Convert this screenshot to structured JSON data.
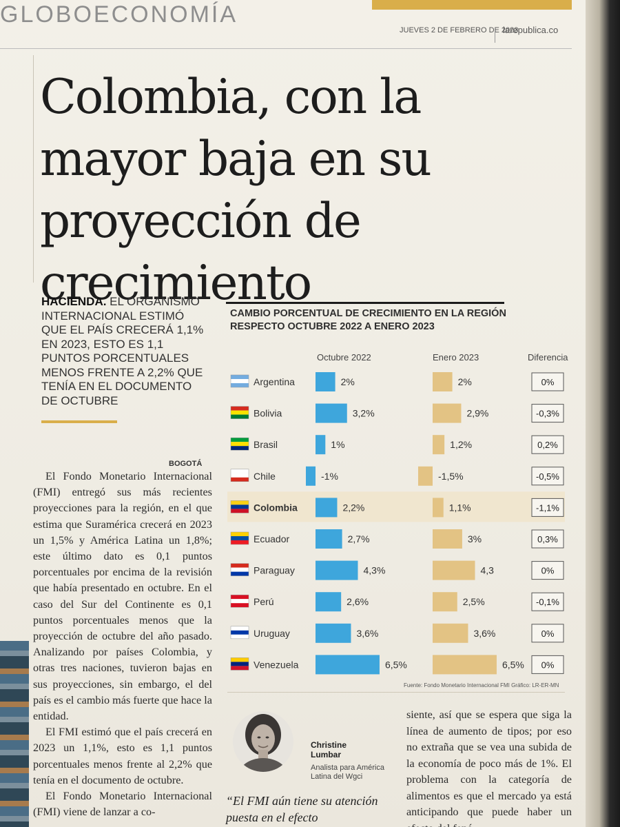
{
  "header": {
    "section": "GLOBOECONOMÍA",
    "date": "JUEVES 2 DE FEBRERO DE 2023",
    "site": "larepublica.co"
  },
  "headline": "Colombia, con la mayor baja en su proyección de crecimiento",
  "lead": {
    "kicker": "HACIENDA.",
    "text": " EL ORGANISMO INTERNACIONAL ESTIMÓ QUE EL PAÍS CRECERÁ 1,1% EN 2023, ESTO ES 1,1 PUNTOS PORCENTUALES MENOS FRENTE A 2,2% QUE TENÍA EN EL DOCUMENTO DE OCTUBRE"
  },
  "body": {
    "dateline": "BOGOTÁ",
    "p1": "El Fondo Monetario Internacional (FMI) entregó sus más recientes proyecciones para la región, en el que estima que Suramérica crecerá en 2023 un 1,5% y América Latina un 1,8%; este último dato es 0,1 puntos porcentuales por encima de la revisión que había presentado en octubre. En el caso del Sur del Continente es 0,1 puntos porcentuales menos que la proyección de octubre del año pasado. Analizando por países Colombia, y otras tres naciones, tuvieron bajas en sus proyecciones, sin embargo, el del país es el cambio más fuerte que hace la entidad.",
    "p2": "El FMI estimó que el país crecerá en 2023 un 1,1%, esto es 1,1 puntos porcentuales menos frente al 2,2% que tenía en el documento de octubre.",
    "p3": "El Fondo Monetario Internacional (FMI) viene de lanzar a co-",
    "col2": "siente, así que se espera que siga la línea de aumento de tipos; por eso no extraña que se vea una subida de la economía de poco más de 1%. El problema con la categoría de alimentos es que el mercado ya está anticipando que puede haber un efecto del fenó-"
  },
  "quote_box": {
    "name_line1": "Christine",
    "name_line2": "Lumbar",
    "role": "Analista para América Latina del Wgci",
    "quote": "“El FMI aún tiene su atención puesta en el efecto"
  },
  "colors": {
    "blue": "#3ea6dc",
    "gold": "#e3c384",
    "highlight": "#f0e6cf",
    "accent": "#d9ae4a"
  },
  "chart_data": {
    "type": "bar",
    "title": "CAMBIO PORCENTUAL DE CRECIMIENTO EN LA REGIÓN RESPECTO OCTUBRE 2022 A ENERO 2023",
    "columns": [
      "Octubre 2022",
      "Enero 2023",
      "Diferencia"
    ],
    "categories": [
      "Argentina",
      "Bolivia",
      "Brasil",
      "Chile",
      "Colombia",
      "Ecuador",
      "Paraguay",
      "Perú",
      "Uruguay",
      "Venezuela"
    ],
    "highlight": "Colombia",
    "series": [
      {
        "name": "Octubre 2022",
        "values": [
          2,
          3.2,
          1,
          -1,
          2.2,
          2.7,
          4.3,
          2.6,
          3.6,
          6.5
        ],
        "labels": [
          "2%",
          "3,2%",
          "1%",
          "-1%",
          "2,2%",
          "2,7%",
          "4,3%",
          "2,6%",
          "3,6%",
          "6,5%"
        ]
      },
      {
        "name": "Enero 2023",
        "values": [
          2,
          2.9,
          1.2,
          -1.5,
          1.1,
          3,
          4.3,
          2.5,
          3.6,
          6.5
        ],
        "labels": [
          "2%",
          "2,9%",
          "1,2%",
          "-1,5%",
          "1,1%",
          "3%",
          "4,3",
          "2,5%",
          "3,6%",
          "6,5%"
        ]
      }
    ],
    "difference": [
      "0%",
      "-0,3%",
      "0,2%",
      "-0,5%",
      "-1,1%",
      "0,3%",
      "0%",
      "-0,1%",
      "0%",
      "0%"
    ],
    "flags": [
      [
        "#74acdf",
        "#ffffff",
        "#74acdf"
      ],
      [
        "#d52b1e",
        "#f9e300",
        "#007934"
      ],
      [
        "#009c3b",
        "#ffdf00",
        "#002776"
      ],
      [
        "#ffffff",
        "#ffffff",
        "#d52b1e"
      ],
      [
        "#fcd116",
        "#003893",
        "#ce1126"
      ],
      [
        "#ffd100",
        "#034ea2",
        "#ed1c24"
      ],
      [
        "#d52b1e",
        "#ffffff",
        "#0038a8"
      ],
      [
        "#d91023",
        "#ffffff",
        "#d91023"
      ],
      [
        "#ffffff",
        "#0038a8",
        "#ffffff"
      ],
      [
        "#ffcc00",
        "#00247d",
        "#cf142b"
      ]
    ],
    "source": "Fuente: Fondo Monetario Internacional FMI   Gráfico: LR-ER-MN"
  }
}
